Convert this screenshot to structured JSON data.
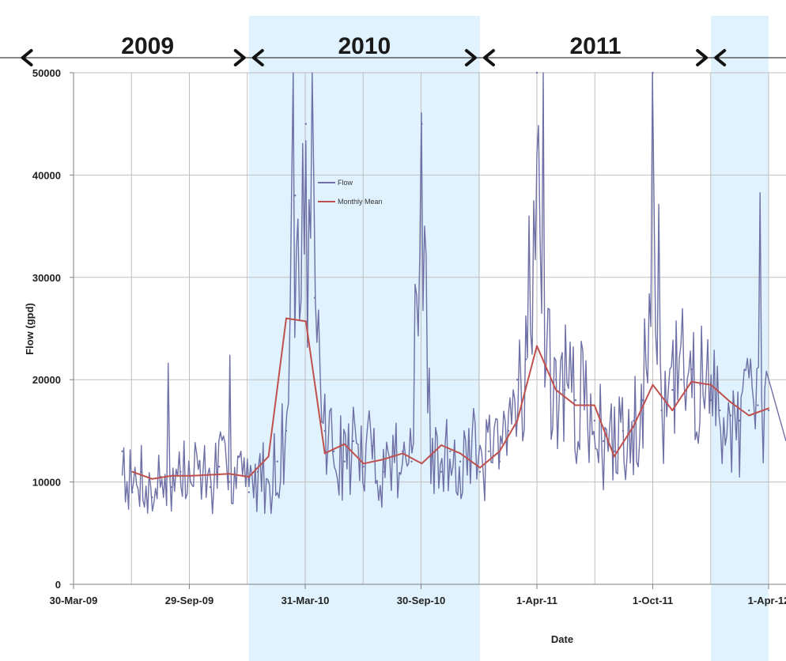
{
  "colors": {
    "flow": "#6e70a6",
    "mean": "#c0504d",
    "band": "#dff2fd",
    "grid": "#bfbfbf",
    "axis": "#7f7f7f",
    "arrow": "#111111"
  },
  "chart_data": {
    "type": "line",
    "title": "",
    "xlabel": "Date",
    "ylabel": "Flow (gpd)",
    "ylim": [
      0,
      50000
    ],
    "yticks": [
      "0",
      "10000",
      "20000",
      "30000",
      "40000",
      "50000"
    ],
    "xlim": [
      "2009-03-30",
      "2012-04-01"
    ],
    "xticks": [
      {
        "date": "2009-03-30",
        "label": "30-Mar-09"
      },
      {
        "date": "2009-09-29",
        "label": "29-Sep-09"
      },
      {
        "date": "2010-03-31",
        "label": "31-Mar-10"
      },
      {
        "date": "2010-09-30",
        "label": "30-Sep-10"
      },
      {
        "date": "2011-04-01",
        "label": "1-Apr-11"
      },
      {
        "date": "2011-10-01",
        "label": "1-Oct-11"
      },
      {
        "date": "2012-04-01",
        "label": "1-Apr-12"
      }
    ],
    "grid": true,
    "legend": "top-center",
    "years": [
      {
        "label": "2009",
        "start": "2009-01-01",
        "end": "2010-01-01",
        "shaded": false
      },
      {
        "label": "2010",
        "start": "2010-01-01",
        "end": "2011-01-01",
        "shaded": true
      },
      {
        "label": "2011",
        "start": "2011-01-01",
        "end": "2012-01-01",
        "shaded": false
      },
      {
        "label": "",
        "start": "2012-01-01",
        "end": "2012-04-01",
        "shaded": true
      }
    ],
    "series": [
      {
        "name": "Flow",
        "style": "daily",
        "x": [
          "2009-06-15",
          "2009-07-01",
          "2009-07-15",
          "2009-08-01",
          "2009-08-15",
          "2009-09-01",
          "2009-09-15",
          "2009-10-01",
          "2009-10-15",
          "2009-11-01",
          "2009-11-15",
          "2009-12-01",
          "2009-12-15",
          "2010-01-01",
          "2010-01-15",
          "2010-02-01",
          "2010-02-15",
          "2010-03-01",
          "2010-03-15",
          "2010-04-01",
          "2010-04-15",
          "2010-05-01",
          "2010-05-15",
          "2010-06-01",
          "2010-06-15",
          "2010-07-01",
          "2010-07-15",
          "2010-08-01",
          "2010-08-15",
          "2010-09-01",
          "2010-09-15",
          "2010-10-01",
          "2010-10-15",
          "2010-11-01",
          "2010-11-15",
          "2010-12-01",
          "2010-12-15",
          "2011-01-01",
          "2011-01-15",
          "2011-02-01",
          "2011-02-15",
          "2011-03-01",
          "2011-03-15",
          "2011-04-01",
          "2011-04-15",
          "2011-05-01",
          "2011-05-15",
          "2011-06-01",
          "2011-06-15",
          "2011-07-01",
          "2011-07-15",
          "2011-08-01",
          "2011-08-15",
          "2011-09-01",
          "2011-09-15",
          "2011-10-01",
          "2011-10-15",
          "2011-11-01",
          "2011-11-15",
          "2011-12-01",
          "2011-12-15",
          "2012-01-01",
          "2012-01-15",
          "2012-02-01",
          "2012-02-15",
          "2012-03-01",
          "2012-03-15",
          "2012-04-01"
        ],
        "y": [
          13000,
          9000,
          11000,
          8500,
          10500,
          9500,
          11000,
          10000,
          12000,
          9500,
          11500,
          10000,
          12500,
          9000,
          11000,
          10000,
          12000,
          15000,
          38000,
          45000,
          28000,
          15000,
          13000,
          12000,
          14000,
          11500,
          13500,
          11000,
          12500,
          13000,
          12000,
          45000,
          12500,
          11000,
          13000,
          12000,
          14000,
          11000,
          13000,
          12000,
          15000,
          20000,
          22000,
          50000,
          21000,
          20000,
          19000,
          18000,
          17500,
          16000,
          14000,
          13000,
          15000,
          16000,
          18000,
          50000,
          17000,
          19000,
          20000,
          21000,
          19500,
          18000,
          17000,
          16500,
          16000,
          17000,
          17500,
          17000
        ]
      },
      {
        "name": "Monthly Mean",
        "style": "monthly",
        "x": [
          "2009-07-01",
          "2009-08-01",
          "2009-09-01",
          "2009-10-01",
          "2009-11-01",
          "2009-12-01",
          "2010-01-01",
          "2010-02-01",
          "2010-03-01",
          "2010-04-01",
          "2010-05-01",
          "2010-06-01",
          "2010-07-01",
          "2010-08-01",
          "2010-09-01",
          "2010-10-01",
          "2010-11-01",
          "2010-12-01",
          "2011-01-01",
          "2011-02-01",
          "2011-03-01",
          "2011-04-01",
          "2011-05-01",
          "2011-06-01",
          "2011-07-01",
          "2011-08-01",
          "2011-09-01",
          "2011-10-01",
          "2011-11-01",
          "2011-12-01",
          "2012-01-01",
          "2012-02-01",
          "2012-03-01",
          "2012-04-01"
        ],
        "y": [
          11000,
          10300,
          10600,
          10600,
          10700,
          10800,
          10500,
          12500,
          26000,
          25700,
          12800,
          13700,
          11800,
          12200,
          12800,
          11800,
          13600,
          12800,
          11400,
          13000,
          16000,
          23300,
          19000,
          17500,
          17500,
          12500,
          15500,
          19500,
          17000,
          19800,
          19500,
          17800,
          16500,
          17200
        ]
      }
    ]
  }
}
